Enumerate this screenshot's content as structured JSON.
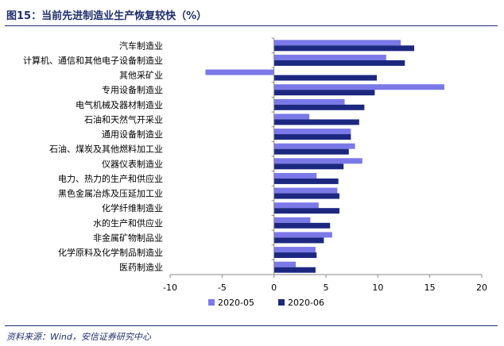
{
  "figure_title": "图15：当前先进制造业生产恢复较快（%）",
  "source": "资料来源：Wind，安信证券研究中心",
  "colors": {
    "series_0": "#7b79e8",
    "series_1": "#1c2880",
    "accent": "#1f2f6e"
  },
  "chart_data": {
    "type": "bar",
    "orientation": "horizontal",
    "title": "",
    "xlabel": "",
    "ylabel": "",
    "xlim": [
      -10,
      20
    ],
    "xticks": [
      -10,
      -5,
      0,
      5,
      10,
      15,
      20
    ],
    "grid": false,
    "legend_position": "bottom",
    "categories": [
      "汽车制造业",
      "计算机、通信和其他电子设备制造业",
      "其他采矿业",
      "专用设备制造业",
      "电气机械及器材制造业",
      "石油和天然气开采业",
      "通用设备制造业",
      "石油、煤炭及其他燃料加工业",
      "仪器仪表制造业",
      "电力、热力的生产和供应业",
      "黑色金属冶炼及压延加工业",
      "化学纤维制造业",
      "水的生产和供应业",
      "非金属矿物制品业",
      "化学原料及化学制品制造业",
      "医药制造业"
    ],
    "series": [
      {
        "name": "2020-05",
        "values": [
          12.2,
          10.8,
          -6.6,
          16.4,
          6.8,
          3.4,
          7.4,
          7.8,
          8.5,
          4.1,
          6.1,
          4.3,
          3.5,
          5.6,
          4.0,
          2.1
        ]
      },
      {
        "name": "2020-06",
        "values": [
          13.5,
          12.6,
          9.9,
          9.7,
          8.7,
          8.2,
          7.4,
          7.2,
          6.7,
          6.2,
          6.3,
          6.3,
          5.4,
          4.8,
          4.1,
          4.0
        ]
      }
    ]
  }
}
